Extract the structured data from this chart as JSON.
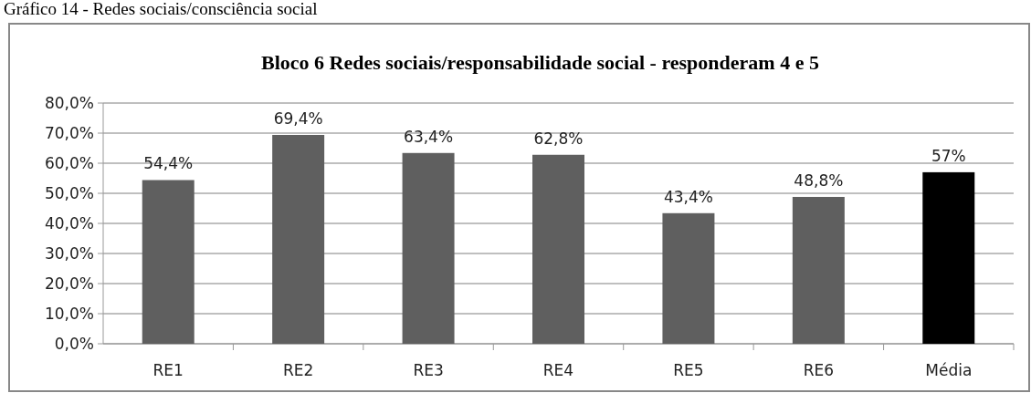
{
  "chart_data": {
    "type": "bar",
    "title": "Bloco 6 Redes sociais/responsabilidade social - responderam 4 e 5",
    "annotations": [
      "Gráfico 14 - Redes sociais/consciência social"
    ],
    "categories": [
      "RE1",
      "RE2",
      "RE3",
      "RE4",
      "RE5",
      "RE6",
      "Média"
    ],
    "values": [
      54.4,
      69.4,
      63.4,
      62.8,
      43.4,
      48.8,
      57
    ],
    "colors": [
      "#5f5f5f",
      "#5f5f5f",
      "#5f5f5f",
      "#5f5f5f",
      "#5f5f5f",
      "#5f5f5f",
      "#000000"
    ],
    "value_labels": [
      "54,4%",
      "69,4%",
      "63,4%",
      "62,8%",
      "43,4%",
      "48,8%",
      "57%"
    ],
    "ylim": [
      0,
      80
    ],
    "yticks": [
      {
        "value": 0,
        "label": "0,0%"
      },
      {
        "value": 10,
        "label": "10,0%"
      },
      {
        "value": 20,
        "label": "20,0%"
      },
      {
        "value": 30,
        "label": "30,0%"
      },
      {
        "value": 40,
        "label": "40,0%"
      },
      {
        "value": 50,
        "label": "50,0%"
      },
      {
        "value": 60,
        "label": "60,0%"
      },
      {
        "value": 70,
        "label": "70,0%"
      },
      {
        "value": 80,
        "label": "80,0%"
      }
    ],
    "grid": "y"
  }
}
